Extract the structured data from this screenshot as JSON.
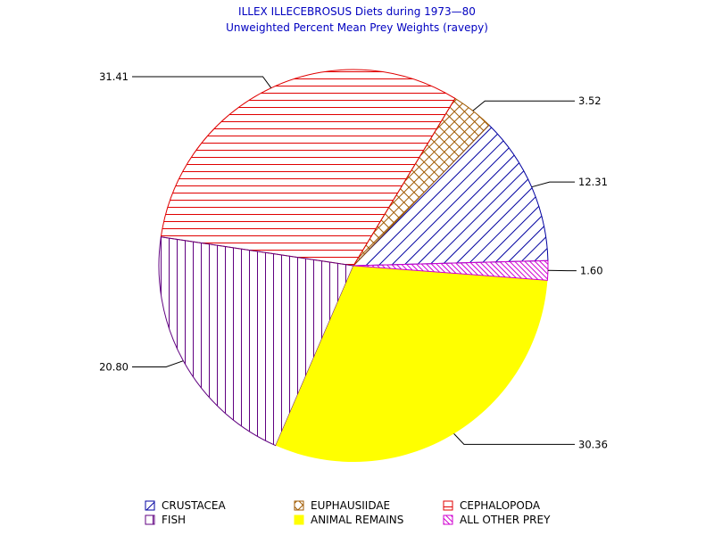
{
  "chart_data": {
    "type": "pie",
    "title": "ILLEX ILLECEBROSUS Diets during 1973—80",
    "subtitle": "Unweighted Percent Mean Prey Weights (ravepy)",
    "slices": [
      {
        "name": "CRUSTACEA",
        "value": 12.31,
        "label": "12.31",
        "color": "#0000a0",
        "pattern": "diagonal-right"
      },
      {
        "name": "EUPHAUSIIDAE",
        "value": 3.52,
        "label": "3.52",
        "color": "#a05a00",
        "pattern": "crosshatch"
      },
      {
        "name": "CEPHALOPODA",
        "value": 31.41,
        "label": "31.41",
        "color": "#e00000",
        "pattern": "horizontal"
      },
      {
        "name": "FISH",
        "value": 20.8,
        "label": "20.80",
        "color": "#600080",
        "pattern": "vertical"
      },
      {
        "name": "ANIMAL REMAINS",
        "value": 30.36,
        "label": "30.36",
        "color": "#ffff00",
        "pattern": "solid"
      },
      {
        "name": "ALL OTHER PREY",
        "value": 1.6,
        "label": "1.60",
        "color": "#d000d0",
        "pattern": "diagonal-left"
      }
    ],
    "legend_position": "bottom"
  }
}
